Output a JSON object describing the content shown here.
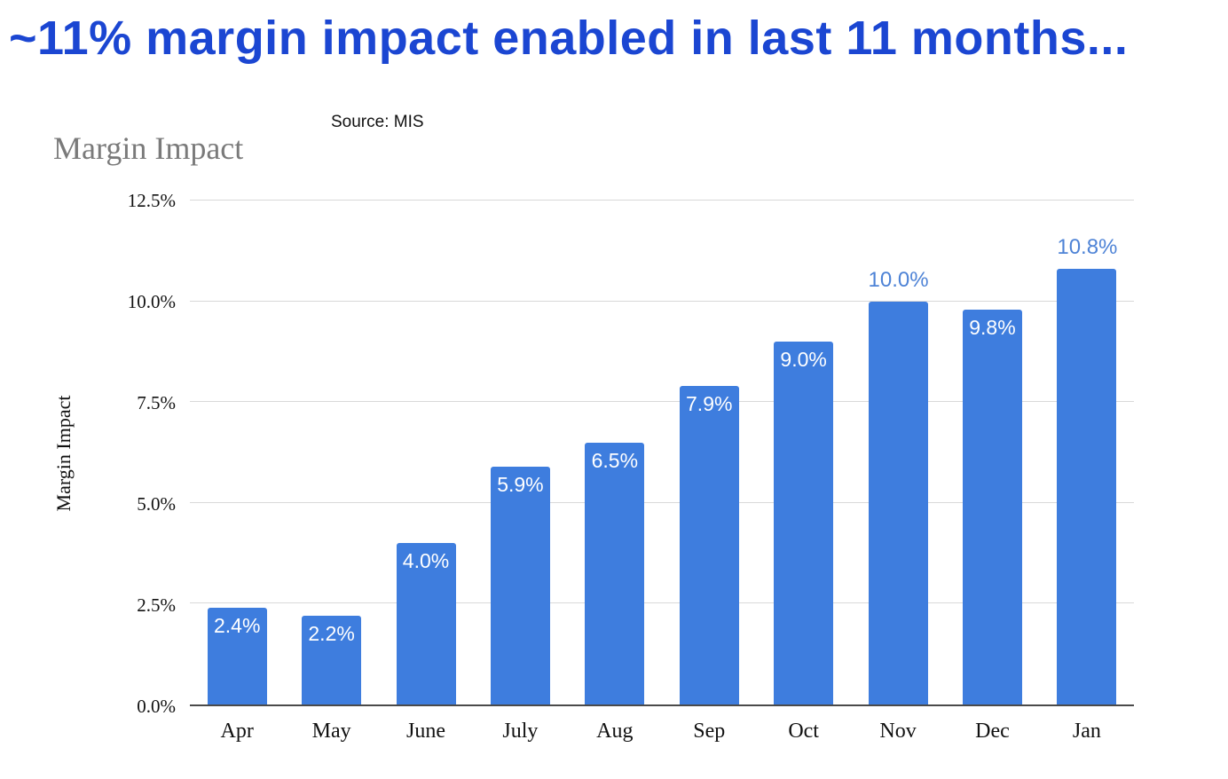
{
  "slide": {
    "title": "~11% margin impact enabled in last 11 months...",
    "source": "Source: MIS"
  },
  "colors": {
    "title_blue": "#1B46D2",
    "bar_blue": "#3E7DDE",
    "outside_label_blue": "#4E83D6",
    "gridline": "#d9d9d9",
    "axis_line": "#4a4a4a",
    "chart_title_gray": "#7a7a7a"
  },
  "chart_data": {
    "type": "bar",
    "title": "Margin Impact",
    "xlabel": "",
    "ylabel": "Margin Impact",
    "ylim": [
      0,
      12.5
    ],
    "grid": true,
    "legend": "none",
    "yticks": [
      {
        "value": 0.0,
        "label": "0.0%"
      },
      {
        "value": 2.5,
        "label": "2.5%"
      },
      {
        "value": 5.0,
        "label": "5.0%"
      },
      {
        "value": 7.5,
        "label": "7.5%"
      },
      {
        "value": 10.0,
        "label": "10.0%"
      },
      {
        "value": 12.5,
        "label": "12.5%"
      }
    ],
    "categories": [
      "Apr",
      "May",
      "June",
      "July",
      "Aug",
      "Sep",
      "Oct",
      "Nov",
      "Dec",
      "Jan"
    ],
    "values": [
      2.4,
      2.2,
      4.0,
      5.9,
      6.5,
      7.9,
      9.0,
      10.0,
      9.8,
      10.8
    ],
    "points": [
      {
        "month": "Apr",
        "value": 2.4,
        "label": "2.4%",
        "label_position": "inside"
      },
      {
        "month": "May",
        "value": 2.2,
        "label": "2.2%",
        "label_position": "inside"
      },
      {
        "month": "June",
        "value": 4.0,
        "label": "4.0%",
        "label_position": "inside"
      },
      {
        "month": "July",
        "value": 5.9,
        "label": "5.9%",
        "label_position": "inside"
      },
      {
        "month": "Aug",
        "value": 6.5,
        "label": "6.5%",
        "label_position": "inside"
      },
      {
        "month": "Sep",
        "value": 7.9,
        "label": "7.9%",
        "label_position": "inside"
      },
      {
        "month": "Oct",
        "value": 9.0,
        "label": "9.0%",
        "label_position": "inside"
      },
      {
        "month": "Nov",
        "value": 10.0,
        "label": "10.0%",
        "label_position": "outside"
      },
      {
        "month": "Dec",
        "value": 9.8,
        "label": "9.8%",
        "label_position": "inside"
      },
      {
        "month": "Jan",
        "value": 10.8,
        "label": "10.8%",
        "label_position": "outside"
      }
    ]
  }
}
